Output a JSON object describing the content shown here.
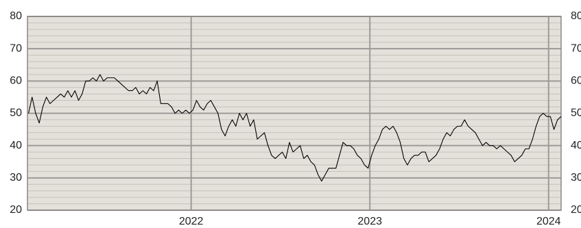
{
  "chart_data": {
    "type": "line",
    "x": [
      2021.09,
      2021.11,
      2021.13,
      2021.15,
      2021.17,
      2021.19,
      2021.21,
      2021.23,
      2021.25,
      2021.27,
      2021.29,
      2021.31,
      2021.33,
      2021.35,
      2021.37,
      2021.39,
      2021.41,
      2021.43,
      2021.45,
      2021.47,
      2021.49,
      2021.51,
      2021.53,
      2021.55,
      2021.57,
      2021.59,
      2021.61,
      2021.63,
      2021.65,
      2021.67,
      2021.69,
      2021.71,
      2021.73,
      2021.75,
      2021.77,
      2021.79,
      2021.81,
      2021.83,
      2021.85,
      2021.87,
      2021.89,
      2021.91,
      2021.93,
      2021.95,
      2021.97,
      2021.99,
      2022.01,
      2022.03,
      2022.05,
      2022.07,
      2022.09,
      2022.11,
      2022.13,
      2022.15,
      2022.17,
      2022.19,
      2022.21,
      2022.23,
      2022.25,
      2022.27,
      2022.29,
      2022.31,
      2022.33,
      2022.35,
      2022.37,
      2022.39,
      2022.41,
      2022.43,
      2022.45,
      2022.47,
      2022.49,
      2022.51,
      2022.53,
      2022.55,
      2022.57,
      2022.59,
      2022.61,
      2022.63,
      2022.65,
      2022.67,
      2022.69,
      2022.71,
      2022.73,
      2022.75,
      2022.77,
      2022.79,
      2022.81,
      2022.83,
      2022.85,
      2022.87,
      2022.89,
      2022.91,
      2022.93,
      2022.95,
      2022.97,
      2022.99,
      2023.01,
      2023.03,
      2023.05,
      2023.07,
      2023.09,
      2023.11,
      2023.13,
      2023.15,
      2023.17,
      2023.19,
      2023.21,
      2023.23,
      2023.25,
      2023.27,
      2023.29,
      2023.31,
      2023.33,
      2023.35,
      2023.37,
      2023.39,
      2023.41,
      2023.43,
      2023.45,
      2023.47,
      2023.49,
      2023.51,
      2023.53,
      2023.55,
      2023.57,
      2023.59,
      2023.61,
      2023.63,
      2023.65,
      2023.67,
      2023.69,
      2023.71,
      2023.73,
      2023.75,
      2023.77,
      2023.79,
      2023.81,
      2023.83,
      2023.85,
      2023.87,
      2023.89,
      2023.91,
      2023.93,
      2023.95,
      2023.97,
      2023.99,
      2024.01,
      2024.03,
      2024.05,
      2024.07
    ],
    "values": [
      50,
      55,
      50,
      47,
      52,
      55,
      53,
      54,
      55,
      56,
      55,
      57,
      55,
      57,
      54,
      56,
      60,
      60,
      61,
      60,
      62,
      60,
      61,
      61,
      61,
      60,
      59,
      58,
      57,
      57,
      58,
      56,
      57,
      56,
      58,
      57,
      60,
      53,
      53,
      53,
      52,
      50,
      51,
      50,
      51,
      50,
      51,
      54,
      52,
      51,
      53,
      54,
      52,
      50,
      45,
      43,
      46,
      48,
      46,
      50,
      48,
      50,
      46,
      48,
      42,
      43,
      44,
      40,
      37,
      36,
      37,
      38,
      36,
      41,
      38,
      39,
      40,
      36,
      37,
      35,
      34,
      31,
      29,
      31,
      33,
      33,
      33,
      37,
      41,
      40,
      40,
      39,
      37,
      36,
      34,
      33,
      37,
      40,
      42,
      45,
      46,
      45,
      46,
      44,
      41,
      36,
      34,
      36,
      37,
      37,
      38,
      38,
      35,
      36,
      37,
      39,
      42,
      44,
      43,
      45,
      46,
      46,
      48,
      46,
      45,
      44,
      42,
      40,
      41,
      40,
      40,
      39,
      40,
      39,
      38,
      37,
      35,
      36,
      37,
      39,
      39,
      42,
      46,
      49,
      50,
      49,
      49,
      45,
      48,
      49
    ],
    "color": "#000000",
    "xlim": [
      2021.084,
      2024.07
    ],
    "xticks": [
      2022,
      2023,
      2024
    ],
    "ylim": [
      20,
      80
    ],
    "yticks": [
      20,
      30,
      40,
      50,
      60,
      70,
      80
    ],
    "yminorticks": [
      22,
      24,
      26,
      28,
      32,
      34,
      36,
      38,
      42,
      44,
      46,
      48,
      52,
      54,
      56,
      58,
      62,
      64,
      66,
      68,
      72,
      74,
      76,
      78
    ],
    "y2lim": [
      20,
      80
    ],
    "y2ticks": [
      20,
      30,
      40,
      50,
      60,
      70,
      80
    ],
    "grid": true
  }
}
